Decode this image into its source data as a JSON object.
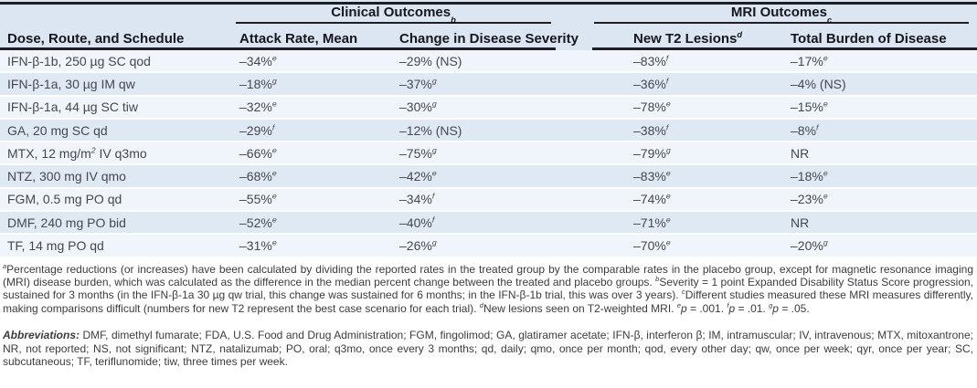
{
  "table": {
    "column_groups": [
      {
        "label": "Clinical Outcomes^b"
      },
      {
        "label": "MRI Outcomes^c"
      }
    ],
    "columns": [
      "Dose, Route, and Schedule",
      "Attack Rate, Mean",
      "Change in Disease Severity",
      "New T2 Lesions^d",
      "Total Burden of Disease"
    ],
    "rows": [
      [
        "IFN-β-1b, 250 µg SC qod",
        "–34%^e",
        "–29% (NS)",
        "–83%^f",
        "–17%^e"
      ],
      [
        "IFN-β-1a, 30 µg IM qw",
        "–18%^g",
        "–37%^g",
        "–36%^f",
        "–4% (NS)"
      ],
      [
        "IFN-β-1a, 44 µg SC tiw",
        "–32%^e",
        "–30%^g",
        "–78%^e",
        "–15%^e"
      ],
      [
        "GA, 20 mg SC qd",
        "–29%^f",
        "–12% (NS)",
        "–38%^f",
        "–8%^f"
      ],
      [
        "MTX, 12 mg/m^2 IV q3mo",
        "–66%^e",
        "–75%^g",
        "–79%^g",
        "NR"
      ],
      [
        "NTZ, 300 mg IV qmo",
        "–68%^e",
        "–42%^e",
        "–83%^e",
        "–18%^e"
      ],
      [
        "FGM, 0.5 mg PO qd",
        "–55%^e",
        "–34%^f",
        "–74%^e",
        "–23%^e"
      ],
      [
        "DMF, 240 mg PO bid",
        "–52%^e",
        "–40%^f",
        "–71%^e",
        "NR"
      ],
      [
        "TF, 14 mg PO qd",
        "–31%^e",
        "–26%^g",
        "–70%^e",
        "–20%^g"
      ]
    ]
  },
  "footnotes": "^aPercentage reductions (or increases) have been calculated by dividing the reported rates in the treated group by the comparable rates in the placebo group, except for magnetic resonance imaging (MRI) disease burden, which was calculated as the difference in the median percent change between the treated and placebo groups. ^bSeverity = 1 point Expanded Disability Status Score progression, sustained for 3 months (in the IFN-β-1a 30 µg qw trial, this change was sustained for 6 months; in the IFN-β-1b trial, this was over 3 years). ^cDifferent studies measured these MRI measures differently, making comparisons difficult (numbers for new T2 represent the best case scenario for each trial). ^dNew lesions seen on T2-weighted MRI. ^e*p* = .001. ^f*p* = .01. ^g*p* = .05.",
  "abbreviations": {
    "label": "Abbreviations:",
    "text": " DMF, dimethyl fumarate; FDA, U.S. Food and Drug Administration; FGM, fingolimod; GA, glatiramer acetate; IFN-β, interferon β; IM, intramuscular; IV, intravenous; MTX, mitoxantrone; NR, not reported; NS, not significant; NTZ, natalizumab; PO, oral; q3mo, once every 3 months; qd, daily; qmo, once per month; qod, every other day; qw, once per week; qyr, once per year; SC, subcutaneous; TF, teriflunomide; tiw, three times per week."
  },
  "colors": {
    "header_bg": "#dce6f2",
    "row_light": "#eff5fb",
    "row_dark": "#dfe9f4",
    "rule": "#1e1e24",
    "header_text": "#16161c",
    "cell_text": "#47474e",
    "footnote_text": "#3c3c40"
  }
}
